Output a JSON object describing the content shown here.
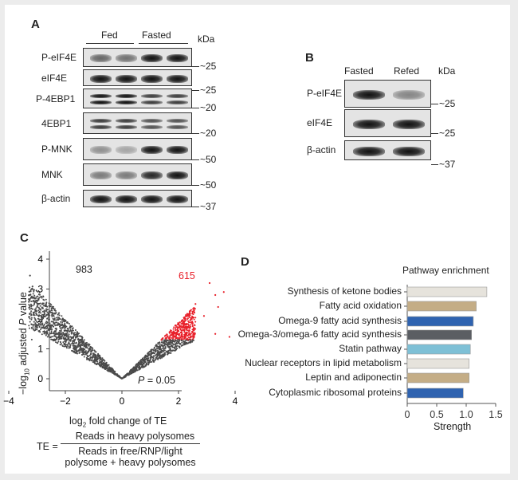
{
  "panelA": {
    "label": "A",
    "groups": [
      "Fed",
      "Fasted"
    ],
    "kda": "kDa",
    "rows": [
      {
        "name": "P-eIF4E",
        "marker": "~25"
      },
      {
        "name": "eIF4E",
        "marker": "~25"
      },
      {
        "name": "P-4EBP1",
        "marker": "~20"
      },
      {
        "name": "4EBP1",
        "marker": "~20"
      },
      {
        "name": "P-MNK",
        "marker": "~50"
      },
      {
        "name": "MNK",
        "marker": "~50"
      },
      {
        "name": "β-actin",
        "marker": "~37"
      }
    ]
  },
  "panelB": {
    "label": "B",
    "groups": [
      "Fasted",
      "Refed"
    ],
    "kda": "kDa",
    "rows": [
      {
        "name": "P-eIF4E",
        "marker": "~25"
      },
      {
        "name": "eIF4E",
        "marker": "~25"
      },
      {
        "name": "β-actin",
        "marker": "~37"
      }
    ]
  },
  "panelC": {
    "label": "C",
    "left_count": "983",
    "right_count": "615",
    "p_label": "P",
    "p_value": "= 0.05",
    "ylabel_pre": "−log",
    "ylabel_sub": "10",
    "ylabel_post": " adjusted ",
    "ylabel_p": "P",
    "ylabel_end": " value",
    "xlabel_pre": "log",
    "xlabel_sub": "2",
    "xlabel_post": " fold change of TE",
    "te_lhs": "TE =",
    "te_num": "Reads in heavy polysomes",
    "te_den1": "Reads in free/RNP/light",
    "te_den2": "polysome + heavy polysomes",
    "highlight_color": "#e8202a",
    "point_color": "#4a4a4a"
  },
  "panelD": {
    "label": "D"
  },
  "chart_data": [
    {
      "type": "scatter",
      "title": "",
      "xlabel": "log2 fold change of TE",
      "ylabel": "-log10 adjusted P value",
      "xlim": [
        -4.5,
        4.5
      ],
      "ylim": [
        0,
        4.2
      ],
      "xticks": [
        "−4",
        "−2",
        "0",
        "2",
        "4"
      ],
      "yticks": [
        "0",
        "1",
        "2",
        "3",
        "4"
      ],
      "significance_threshold_p": 0.05,
      "down_count": 983,
      "up_count": 615
    },
    {
      "type": "bar",
      "orientation": "horizontal",
      "title": "Pathway enrichment",
      "xlabel": "Strength",
      "xlim": [
        0,
        1.5
      ],
      "xticks": [
        "0",
        "0.5",
        "1.0",
        "1.5"
      ],
      "categories": [
        "Synthesis of ketone bodies",
        "Fatty acid oxidation",
        "Omega-9 fatty acid synthesis",
        "Omega-3/omega-6 fatty acid synthesis",
        "Statin pathway",
        "Nuclear receptors in lipid metabolism",
        "Leptin and adiponectin",
        "Cytoplasmic ribosomal proteins"
      ],
      "values": [
        1.35,
        1.17,
        1.12,
        1.09,
        1.07,
        1.05,
        1.05,
        0.95
      ],
      "colors": [
        "#e6e3dc",
        "#c4ad86",
        "#2f63b0",
        "#5b5e63",
        "#7ec0d6",
        "#e6e3dc",
        "#c4ad86",
        "#2f63b0"
      ]
    }
  ]
}
